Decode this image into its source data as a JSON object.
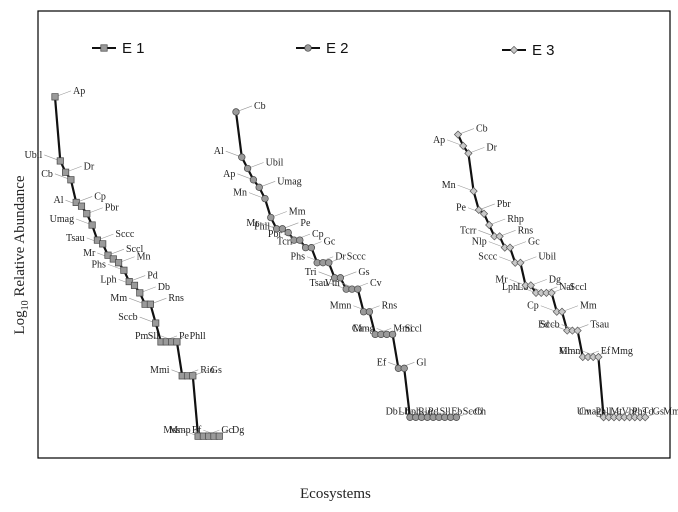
{
  "chart_data": {
    "type": "line",
    "xlabel": "Ecosystems",
    "ylabel_main": "Log",
    "ylabel_sub": "10",
    "ylabel_rest": " Relative Abundance",
    "series": [
      {
        "name": "E 1",
        "marker": "square",
        "points": [
          {
            "label": "Ap",
            "y": 95
          },
          {
            "label": "Ubil",
            "y": 78
          },
          {
            "label": "Dr",
            "y": 75
          },
          {
            "label": "Cb",
            "y": 73
          },
          {
            "label": "Cp",
            "y": 67
          },
          {
            "label": "Al",
            "y": 66
          },
          {
            "label": "Pbr",
            "y": 64
          },
          {
            "label": "Umag",
            "y": 61
          },
          {
            "label": "Sccc",
            "y": 57
          },
          {
            "label": "Tsau",
            "y": 56
          },
          {
            "label": "Sccl",
            "y": 53
          },
          {
            "label": "Mr",
            "y": 52
          },
          {
            "label": "Mn",
            "y": 51
          },
          {
            "label": "Phs",
            "y": 49
          },
          {
            "label": "Pd",
            "y": 46
          },
          {
            "label": "Lph",
            "y": 45
          },
          {
            "label": "Db",
            "y": 43
          },
          {
            "label": "Mm",
            "y": 40
          },
          {
            "label": "Rns",
            "y": 40
          },
          {
            "label": "Sccb",
            "y": 35
          },
          {
            "label": "Pe",
            "y": 30
          },
          {
            "label": "Pm",
            "y": 30
          },
          {
            "label": "Phll",
            "y": 30
          },
          {
            "label": "Sll",
            "y": 30
          },
          {
            "label": "Rio",
            "y": 21
          },
          {
            "label": "Mmi",
            "y": 21
          },
          {
            "label": "Gs",
            "y": 21
          },
          {
            "label": "Mss",
            "y": 5
          },
          {
            "label": "Gc",
            "y": 5
          },
          {
            "label": "Mmp",
            "y": 5
          },
          {
            "label": "Dg",
            "y": 5
          },
          {
            "label": "Ef",
            "y": 5
          }
        ]
      },
      {
        "name": "E 2",
        "marker": "circle",
        "points": [
          {
            "label": "Cb",
            "y": 91
          },
          {
            "label": "Al",
            "y": 79
          },
          {
            "label": "Ubil",
            "y": 76
          },
          {
            "label": "Ap",
            "y": 73
          },
          {
            "label": "Umag",
            "y": 71
          },
          {
            "label": "Mn",
            "y": 68
          },
          {
            "label": "Mm",
            "y": 63
          },
          {
            "label": "Mr",
            "y": 60
          },
          {
            "label": "Pe",
            "y": 60
          },
          {
            "label": "Phll",
            "y": 59
          },
          {
            "label": "Cp",
            "y": 57
          },
          {
            "label": "Pbr",
            "y": 57
          },
          {
            "label": "Gc",
            "y": 55
          },
          {
            "label": "Tcrr",
            "y": 55
          },
          {
            "label": "Dr",
            "y": 51
          },
          {
            "label": "Phs",
            "y": 51
          },
          {
            "label": "Sccc",
            "y": 51
          },
          {
            "label": "Tri",
            "y": 47
          },
          {
            "label": "Gs",
            "y": 47
          },
          {
            "label": "Tsau",
            "y": 44
          },
          {
            "label": "Cv",
            "y": 44
          },
          {
            "label": "Vth",
            "y": 44
          },
          {
            "label": "Rns",
            "y": 38
          },
          {
            "label": "Mmn",
            "y": 38
          },
          {
            "label": "Mmi",
            "y": 32
          },
          {
            "label": "Ca",
            "y": 32
          },
          {
            "label": "Sccl",
            "y": 32
          },
          {
            "label": "Mmg",
            "y": 32
          },
          {
            "label": "Gl",
            "y": 23
          },
          {
            "label": "Ef",
            "y": 23
          },
          {
            "label": "Pd",
            "y": 10
          },
          {
            "label": "Db",
            "y": 10
          },
          {
            "label": "Sll",
            "y": 10
          },
          {
            "label": "Lb",
            "y": 10
          },
          {
            "label": "Eb",
            "y": 10
          },
          {
            "label": "Lph",
            "y": 10
          },
          {
            "label": "Sccb",
            "y": 10
          },
          {
            "label": "Rio",
            "y": 10
          },
          {
            "label": "Ch",
            "y": 10
          }
        ]
      },
      {
        "name": "E 3",
        "marker": "diamond",
        "points": [
          {
            "label": "Cb",
            "y": 85
          },
          {
            "label": "Ap",
            "y": 82
          },
          {
            "label": "Dr",
            "y": 80
          },
          {
            "label": "Mn",
            "y": 70
          },
          {
            "label": "Pbr",
            "y": 65
          },
          {
            "label": "Pe",
            "y": 64
          },
          {
            "label": "Rhp",
            "y": 61
          },
          {
            "label": "Tcrr",
            "y": 58
          },
          {
            "label": "Rns",
            "y": 58
          },
          {
            "label": "Nlp",
            "y": 55
          },
          {
            "label": "Gc",
            "y": 55
          },
          {
            "label": "Sccc",
            "y": 51
          },
          {
            "label": "Ubil",
            "y": 51
          },
          {
            "label": "Mr",
            "y": 45
          },
          {
            "label": "Dg",
            "y": 45
          },
          {
            "label": "Lph",
            "y": 43
          },
          {
            "label": "Nal",
            "y": 43
          },
          {
            "label": "Lb",
            "y": 43
          },
          {
            "label": "Sccl",
            "y": 43
          },
          {
            "label": "Cp",
            "y": 38
          },
          {
            "label": "Mm",
            "y": 38
          },
          {
            "label": "Ed",
            "y": 33
          },
          {
            "label": "Tsau",
            "y": 33
          },
          {
            "label": "Sccb",
            "y": 33
          },
          {
            "label": "Ef",
            "y": 26
          },
          {
            "label": "Gl",
            "y": 26
          },
          {
            "label": "Mmg",
            "y": 26
          },
          {
            "label": "Mmn",
            "y": 26
          },
          {
            "label": "Vbi",
            "y": 10
          },
          {
            "label": "Cv",
            "y": 10
          },
          {
            "label": "Phs",
            "y": 10
          },
          {
            "label": "Umag",
            "y": 10
          },
          {
            "label": "Td",
            "y": 10
          },
          {
            "label": "Phll",
            "y": 10
          },
          {
            "label": "Gs",
            "y": 10
          },
          {
            "label": "Mt",
            "y": 10
          },
          {
            "label": "Mmi",
            "y": 10
          }
        ]
      }
    ]
  }
}
